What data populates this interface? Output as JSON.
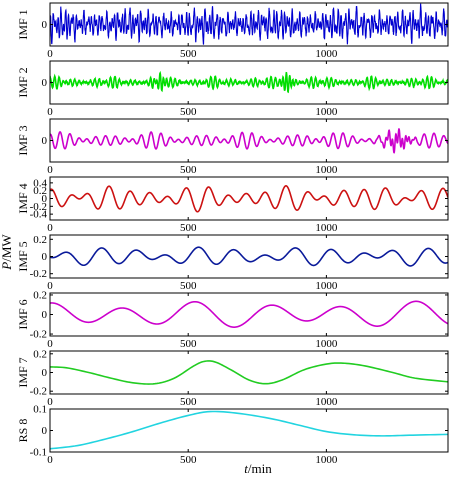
{
  "chart_data": [
    {
      "type": "line",
      "ylabel": "IMF 1",
      "ylim": [
        -0.5,
        0.5
      ],
      "yticks": [
        "0"
      ],
      "xlim": [
        0,
        1440
      ],
      "xticks": [
        "0",
        "500",
        "1000"
      ],
      "series": [
        {
          "color": "#0000d0",
          "components": [
            {
              "period": 9.3,
              "amp": 0.18,
              "phase": 0.3
            },
            {
              "period": 13.7,
              "amp": 0.16,
              "phase": 1.7
            },
            {
              "period": 21.0,
              "amp": 0.1,
              "phase": 2.9
            }
          ],
          "noise": 0.07,
          "mod_period": 260,
          "mod_depth": 0.35,
          "offset": 0,
          "seed": 11
        }
      ]
    },
    {
      "type": "line",
      "ylabel": "IMF 2",
      "ylim": [
        -0.65,
        0.65
      ],
      "yticks": [
        "0"
      ],
      "xlim": [
        0,
        1440
      ],
      "xticks": [
        "0",
        "500",
        "1000"
      ],
      "series": [
        {
          "color": "#00dd00",
          "components": [
            {
              "period": 14.5,
              "amp": 0.1,
              "phase": 0.4
            },
            {
              "period": 18.2,
              "amp": 0.09,
              "phase": 2.1
            }
          ],
          "noise": 0.015,
          "mod_period": 190,
          "mod_depth": 0.7,
          "offset": 0,
          "seed": 7,
          "bursts": [
            {
              "x": 395,
              "w": 22,
              "amp": 0.22
            },
            {
              "x": 860,
              "w": 22,
              "amp": 0.26
            }
          ]
        }
      ]
    },
    {
      "type": "line",
      "ylabel": "IMF 3",
      "ylim": [
        -1.1,
        1.1
      ],
      "yticks": [
        "0"
      ],
      "xlim": [
        0,
        1440
      ],
      "xticks": [
        "0",
        "500",
        "1000"
      ],
      "series": [
        {
          "color": "#cc00cc",
          "components": [
            {
              "period": 33,
              "amp": 0.26,
              "phase": 0.9
            },
            {
              "period": 41,
              "amp": 0.18,
              "phase": 2.3
            }
          ],
          "noise": 0.0,
          "mod_period": 320,
          "mod_depth": 0.45,
          "offset": 0,
          "seed": 3,
          "bursts": [
            {
              "x": 1255,
              "w": 45,
              "amp": 0.35
            }
          ]
        }
      ]
    },
    {
      "type": "line",
      "ylabel": "IMF 4",
      "ylim": [
        -0.55,
        0.55
      ],
      "yticks": [
        "0.4",
        "0.2",
        "0",
        "-0.2",
        "-0.4"
      ],
      "xlim": [
        0,
        1440
      ],
      "xticks": [
        "0",
        "500",
        "1000"
      ],
      "series": [
        {
          "color": "#cc1111",
          "components": [
            {
              "period": 71,
              "amp": 0.17,
              "phase": 1.4
            },
            {
              "period": 93,
              "amp": 0.11,
              "phase": 0.2
            },
            {
              "period": 123,
              "amp": 0.06,
              "phase": 2.6
            }
          ],
          "noise": 0.0,
          "mod_period": 0,
          "mod_depth": 0,
          "offset": 0,
          "seed": 5
        }
      ]
    },
    {
      "type": "line",
      "ylabel": "IMF 5",
      "ylim": [
        -0.25,
        0.25
      ],
      "yticks": [
        "0.2",
        "0",
        "-0.2"
      ],
      "xlim": [
        0,
        1440
      ],
      "xticks": [
        "0",
        "500",
        "1000"
      ],
      "series": [
        {
          "color": "#0a1a9a",
          "components": [
            {
              "period": 118,
              "amp": 0.065,
              "phase": 4.2
            },
            {
              "period": 170,
              "amp": 0.04,
              "phase": 1.1
            },
            {
              "period": 300,
              "amp": 0.015,
              "phase": 2.0
            }
          ],
          "noise": 0.0,
          "mod_period": 0,
          "mod_depth": 0,
          "offset": 0,
          "seed": 9
        }
      ]
    },
    {
      "type": "line",
      "ylabel": "IMF 6",
      "ylim": [
        -0.22,
        0.22
      ],
      "yticks": [
        "0.2",
        "0",
        "-0.2"
      ],
      "xlim": [
        0,
        1440
      ],
      "xticks": [
        "0",
        "500",
        "1000"
      ],
      "series": [
        {
          "color": "#cc00cc",
          "components": [
            {
              "period": 265,
              "amp": 0.1,
              "phase": 1.6
            },
            {
              "period": 420,
              "amp": 0.035,
              "phase": 0.5
            }
          ],
          "noise": 0.0,
          "mod_period": 0,
          "mod_depth": 0,
          "offset": 0,
          "seed": 13
        }
      ]
    },
    {
      "type": "line",
      "ylabel": "IMF 7",
      "ylim": [
        -0.23,
        0.23
      ],
      "yticks": [
        "0.2",
        "0",
        "-0.2"
      ],
      "xlim": [
        0,
        1440
      ],
      "xticks": [
        "0",
        "500",
        "1000"
      ],
      "series": [
        {
          "color": "#22cc22",
          "points": [
            [
              0,
              0.06
            ],
            [
              60,
              0.05
            ],
            [
              140,
              0.0
            ],
            [
              220,
              -0.06
            ],
            [
              300,
              -0.11
            ],
            [
              380,
              -0.12
            ],
            [
              450,
              -0.06
            ],
            [
              520,
              0.07
            ],
            [
              560,
              0.12
            ],
            [
              600,
              0.11
            ],
            [
              660,
              0.02
            ],
            [
              720,
              -0.08
            ],
            [
              780,
              -0.12
            ],
            [
              840,
              -0.08
            ],
            [
              920,
              0.03
            ],
            [
              1000,
              0.09
            ],
            [
              1060,
              0.1
            ],
            [
              1140,
              0.07
            ],
            [
              1240,
              0.0
            ],
            [
              1320,
              -0.06
            ],
            [
              1440,
              -0.1
            ]
          ]
        }
      ]
    },
    {
      "type": "line",
      "ylabel": "RS 8",
      "ylim": [
        -0.1,
        0.1
      ],
      "yticks": [
        "0.1",
        "0",
        "-0.1"
      ],
      "xlim": [
        0,
        1440
      ],
      "xticks": [
        "0",
        "500",
        "1000"
      ],
      "series": [
        {
          "color": "#22d4e0",
          "points": [
            [
              0,
              -0.085
            ],
            [
              100,
              -0.07
            ],
            [
              200,
              -0.04
            ],
            [
              300,
              -0.005
            ],
            [
              400,
              0.035
            ],
            [
              500,
              0.07
            ],
            [
              580,
              0.088
            ],
            [
              680,
              0.08
            ],
            [
              800,
              0.055
            ],
            [
              900,
              0.025
            ],
            [
              1000,
              -0.005
            ],
            [
              1100,
              -0.02
            ],
            [
              1200,
              -0.025
            ],
            [
              1300,
              -0.022
            ],
            [
              1440,
              -0.018
            ]
          ]
        }
      ]
    }
  ],
  "labels": {
    "ylabel_P": "P",
    "ylabel_unit": "/MW",
    "xlabel_t": "t",
    "xlabel_unit": "/min"
  }
}
